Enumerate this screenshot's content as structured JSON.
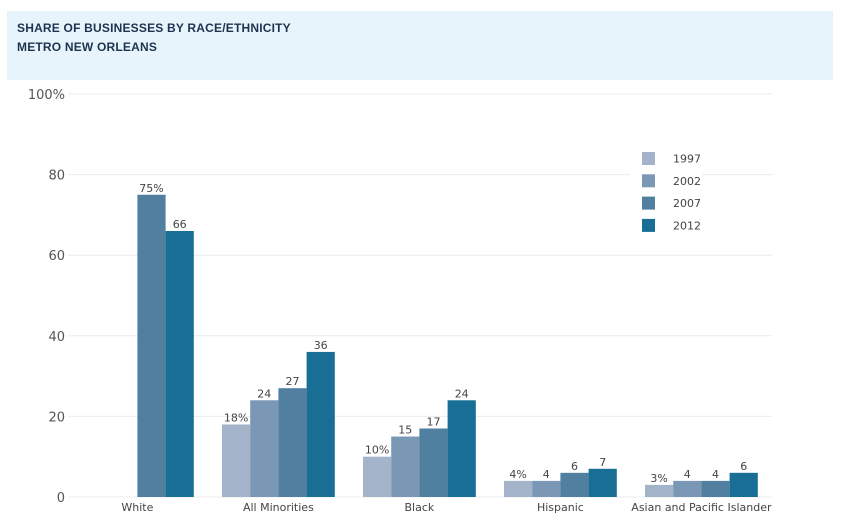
{
  "header": {
    "title_line1": "SHARE OF BUSINESSES BY RACE/ETHNICITY",
    "title_line2": "METRO NEW ORLEANS"
  },
  "chart_data": {
    "type": "bar",
    "title": "SHARE OF BUSINESSES BY RACE/ETHNICITY",
    "subtitle": "METRO NEW ORLEANS",
    "xlabel": "",
    "ylabel": "",
    "ylim": [
      0,
      100
    ],
    "yticks": [
      0,
      20,
      40,
      60,
      80,
      100
    ],
    "ytick_labels": [
      "0",
      "20",
      "40",
      "60",
      "80",
      "100%"
    ],
    "grid": true,
    "legend_position": "top-right",
    "categories": [
      "White",
      "All Minorities",
      "Black",
      "Hispanic",
      "Asian and Pacific Islander"
    ],
    "series": [
      {
        "name": "1997",
        "color": "#a3b3c9",
        "values": [
          null,
          18,
          10,
          4,
          3
        ],
        "labels": [
          "",
          "18%",
          "10%",
          "4%",
          "3%"
        ]
      },
      {
        "name": "2002",
        "color": "#7a98b5",
        "values": [
          null,
          24,
          15,
          4,
          4
        ],
        "labels": [
          "",
          "24",
          "15",
          "4",
          "4"
        ]
      },
      {
        "name": "2007",
        "color": "#517f9f",
        "values": [
          75,
          27,
          17,
          6,
          4
        ],
        "labels": [
          "75%",
          "27",
          "17",
          "6",
          "4"
        ]
      },
      {
        "name": "2012",
        "color": "#186e94",
        "values": [
          66,
          36,
          24,
          7,
          6
        ],
        "labels": [
          "66",
          "36",
          "24",
          "7",
          "6"
        ]
      }
    ]
  }
}
